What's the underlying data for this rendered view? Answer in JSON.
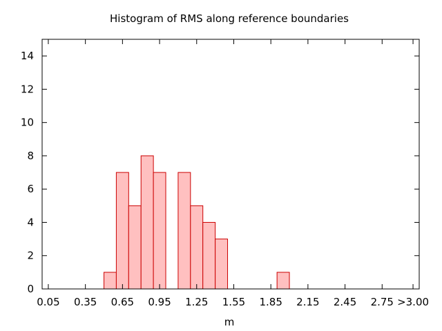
{
  "chart_data": {
    "type": "bar",
    "title": "Histogram of RMS along reference boundaries",
    "xlabel": "m",
    "ylabel": "",
    "x_tick_labels": [
      "0.05",
      "0.35",
      "0.65",
      "0.95",
      "1.25",
      "1.55",
      "1.85",
      "2.15",
      "2.45",
      "2.75",
      ">3.00"
    ],
    "x_tick_values": [
      0.05,
      0.35,
      0.65,
      0.95,
      1.25,
      1.55,
      1.85,
      2.15,
      2.45,
      2.75,
      3.0
    ],
    "y_ticks": [
      0,
      2,
      4,
      6,
      8,
      10,
      12,
      14
    ],
    "xlim": [
      0.0,
      3.05
    ],
    "ylim": [
      0,
      15
    ],
    "bin_width": 0.1,
    "bins": [
      {
        "start": 0.5,
        "value": 1
      },
      {
        "start": 0.6,
        "value": 7
      },
      {
        "start": 0.7,
        "value": 5
      },
      {
        "start": 0.8,
        "value": 8
      },
      {
        "start": 0.9,
        "value": 7
      },
      {
        "start": 1.0,
        "value": 0
      },
      {
        "start": 1.1,
        "value": 7
      },
      {
        "start": 1.2,
        "value": 5
      },
      {
        "start": 1.3,
        "value": 4
      },
      {
        "start": 1.4,
        "value": 3
      },
      {
        "start": 1.9,
        "value": 1
      }
    ],
    "grid": false,
    "bar_fill": "#ffc0c0",
    "bar_stroke": "#cc0000"
  }
}
